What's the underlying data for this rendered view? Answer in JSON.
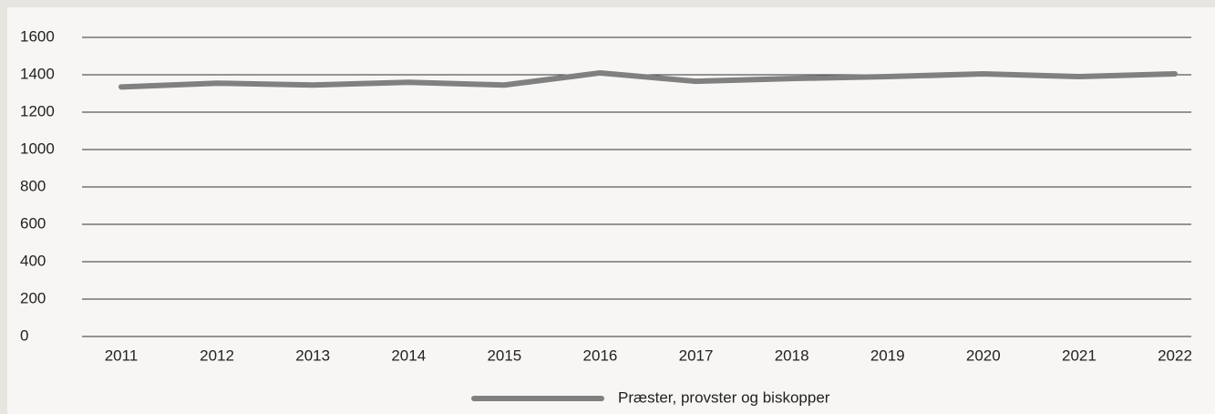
{
  "chart_data": {
    "type": "line",
    "categories": [
      "2011",
      "2012",
      "2013",
      "2014",
      "2015",
      "2016",
      "2017",
      "2018",
      "2019",
      "2020",
      "2021",
      "2022"
    ],
    "series": [
      {
        "name": "Præster, provster og biskopper",
        "color": "#808080",
        "values": [
          1335,
          1355,
          1345,
          1360,
          1345,
          1410,
          1365,
          1380,
          1390,
          1405,
          1390,
          1405
        ]
      }
    ],
    "ylim": [
      0,
      1600
    ],
    "yticks": [
      0,
      200,
      400,
      600,
      800,
      1000,
      1200,
      1400,
      1600
    ],
    "grid": true,
    "legend": "bottom"
  }
}
